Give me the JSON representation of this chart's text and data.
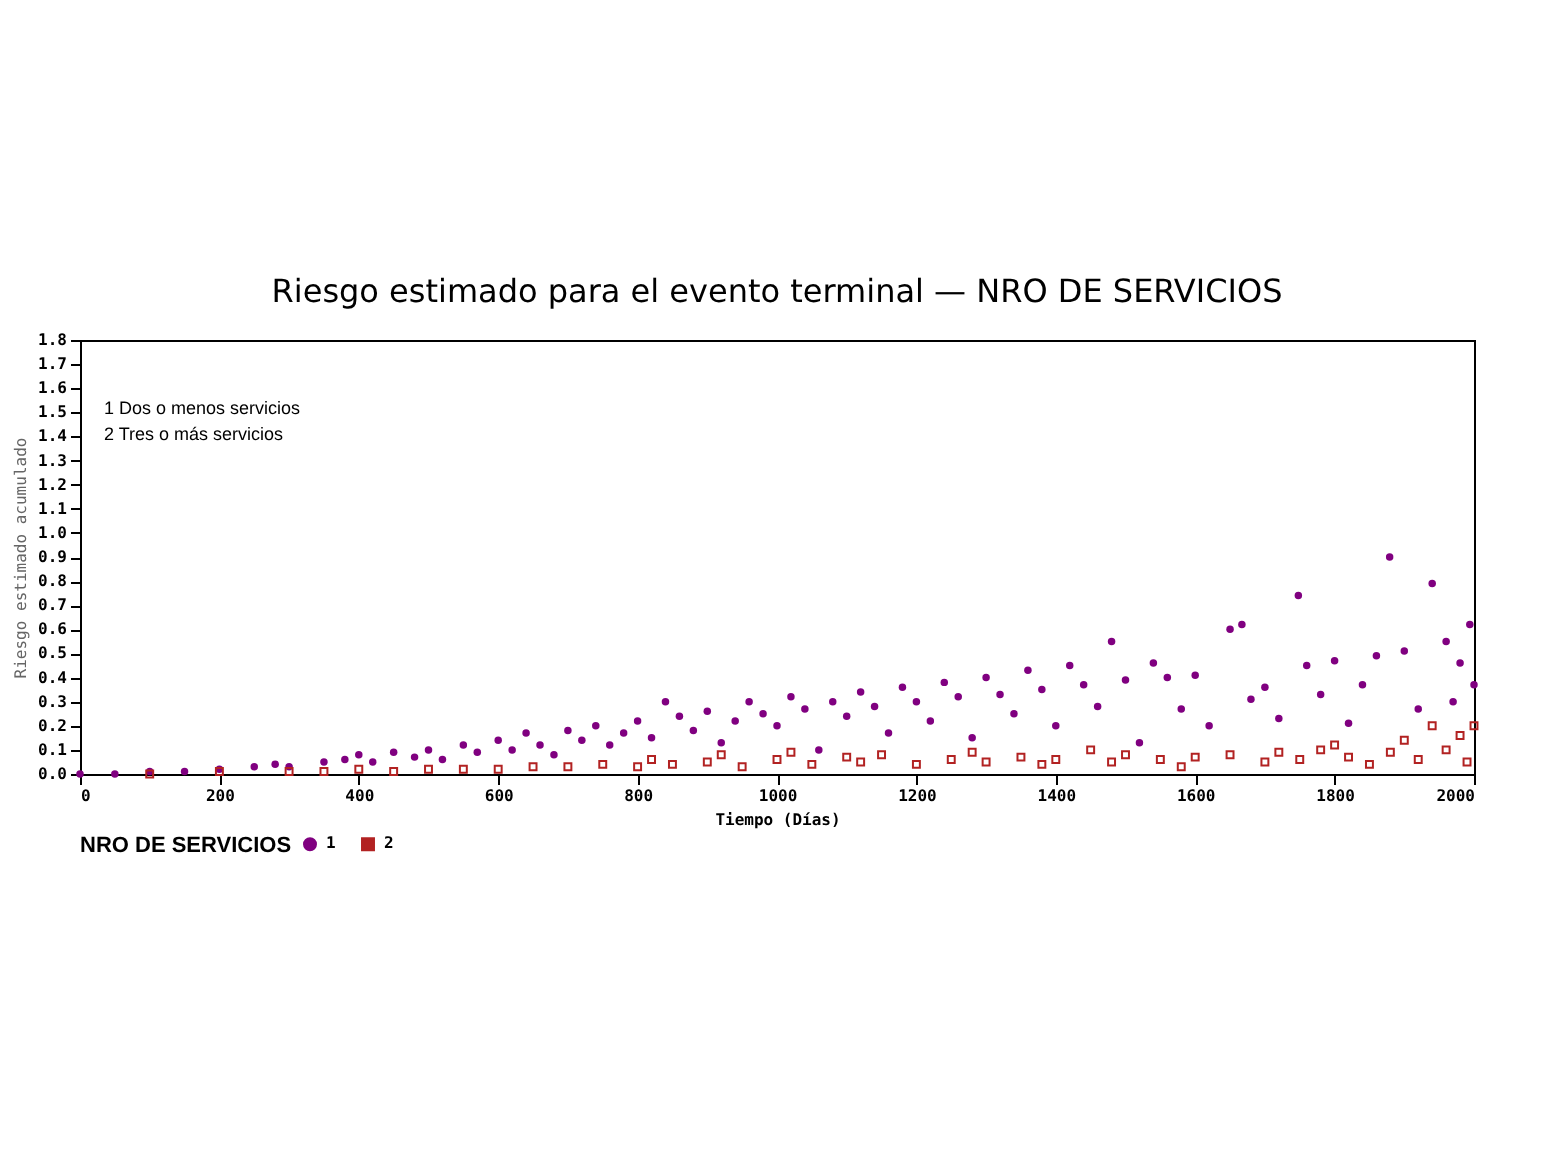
{
  "chart_data": {
    "type": "scatter",
    "title": "Riesgo estimado para el evento terminal — NRO DE SERVICIOS",
    "xlabel": "Tiempo (Días)",
    "ylabel": "Riesgo estimado acumulado",
    "legend_title": "NRO DE SERVICIOS",
    "legend": "bottom",
    "grid": false,
    "xlim": [
      0,
      2000
    ],
    "xticks": [
      0,
      200,
      400,
      600,
      800,
      1000,
      1200,
      1400,
      1600,
      1800,
      2000
    ],
    "ylim": [
      0,
      1.8
    ],
    "yticks": [
      {
        "value": 0,
        "label": "0.0"
      },
      0.1,
      0.2,
      0.3,
      0.4,
      0.5,
      0.6,
      0.7,
      0.8,
      0.9,
      {
        "value": 1,
        "label": "1.0"
      },
      1.1,
      1.2,
      1.3,
      1.4,
      1.5,
      1.6,
      1.7,
      1.8
    ],
    "annotations": [
      "1 Dos o menos servicios",
      "2 Tres o más servicios"
    ],
    "series": [
      {
        "name": "1",
        "color": "#800080",
        "marker": "circle",
        "x": [
          0,
          50,
          100,
          150,
          200,
          250,
          280,
          300,
          350,
          380,
          400,
          420,
          450,
          480,
          500,
          520,
          550,
          570,
          600,
          620,
          640,
          660,
          680,
          700,
          720,
          740,
          760,
          780,
          800,
          820,
          840,
          860,
          880,
          900,
          920,
          940,
          960,
          980,
          1000,
          1020,
          1040,
          1060,
          1080,
          1100,
          1120,
          1140,
          1160,
          1180,
          1200,
          1220,
          1240,
          1260,
          1280,
          1300,
          1320,
          1340,
          1360,
          1380,
          1400,
          1420,
          1440,
          1460,
          1480,
          1500,
          1520,
          1540,
          1560,
          1580,
          1600,
          1620,
          1650,
          1667,
          1680,
          1700,
          1720,
          1748,
          1760,
          1780,
          1800,
          1820,
          1840,
          1860,
          1879,
          1900,
          1920,
          1940,
          1960,
          1970,
          1980,
          1994,
          2000
        ],
        "values": [
          0.0,
          0.0,
          0.01,
          0.01,
          0.02,
          0.03,
          0.04,
          0.03,
          0.05,
          0.06,
          0.08,
          0.05,
          0.09,
          0.07,
          0.1,
          0.06,
          0.12,
          0.09,
          0.14,
          0.1,
          0.17,
          0.12,
          0.08,
          0.18,
          0.14,
          0.2,
          0.12,
          0.17,
          0.22,
          0.15,
          0.3,
          0.24,
          0.18,
          0.26,
          0.13,
          0.22,
          0.3,
          0.25,
          0.2,
          0.32,
          0.27,
          0.1,
          0.3,
          0.24,
          0.34,
          0.28,
          0.17,
          0.36,
          0.3,
          0.22,
          0.38,
          0.32,
          0.15,
          0.4,
          0.33,
          0.25,
          0.43,
          0.35,
          0.2,
          0.45,
          0.37,
          0.28,
          0.55,
          0.39,
          0.13,
          0.46,
          0.4,
          0.27,
          0.41,
          0.2,
          0.6,
          0.62,
          0.31,
          0.36,
          0.23,
          0.74,
          0.45,
          0.33,
          0.47,
          0.21,
          0.37,
          0.49,
          0.9,
          0.51,
          0.27,
          0.79,
          0.55,
          0.3,
          0.46,
          0.62,
          0.37
        ]
      },
      {
        "name": "2",
        "color": "#b22222",
        "marker": "square",
        "x": [
          100,
          200,
          300,
          350,
          400,
          450,
          500,
          550,
          600,
          650,
          700,
          750,
          800,
          820,
          850,
          900,
          920,
          950,
          1000,
          1020,
          1050,
          1100,
          1120,
          1150,
          1200,
          1250,
          1280,
          1300,
          1350,
          1380,
          1400,
          1450,
          1480,
          1500,
          1550,
          1580,
          1600,
          1650,
          1700,
          1720,
          1750,
          1780,
          1800,
          1820,
          1850,
          1880,
          1900,
          1920,
          1940,
          1960,
          1980,
          1990,
          2000
        ],
        "values": [
          0.0,
          0.01,
          0.01,
          0.01,
          0.02,
          0.01,
          0.02,
          0.02,
          0.02,
          0.03,
          0.03,
          0.04,
          0.03,
          0.06,
          0.04,
          0.05,
          0.08,
          0.03,
          0.06,
          0.09,
          0.04,
          0.07,
          0.05,
          0.08,
          0.04,
          0.06,
          0.09,
          0.05,
          0.07,
          0.04,
          0.06,
          0.1,
          0.05,
          0.08,
          0.06,
          0.03,
          0.07,
          0.08,
          0.05,
          0.09,
          0.06,
          0.1,
          0.12,
          0.07,
          0.04,
          0.09,
          0.14,
          0.06,
          0.2,
          0.1,
          0.16,
          0.05,
          0.2
        ]
      }
    ]
  }
}
